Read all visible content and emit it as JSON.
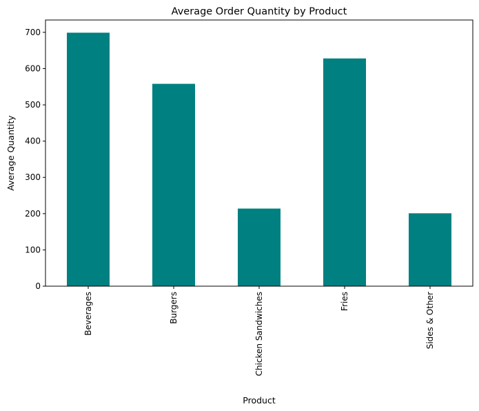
{
  "chart_data": {
    "type": "bar",
    "title": "Average Order Quantity by Product",
    "xlabel": "Product",
    "ylabel": "Average Quantity",
    "categories": [
      "Beverages",
      "Burgers",
      "Chicken Sandwiches",
      "Fries",
      "Sides & Other"
    ],
    "values": [
      699,
      558,
      214,
      628,
      201
    ],
    "ylim": [
      0,
      734
    ],
    "yticks": [
      0,
      100,
      200,
      300,
      400,
      500,
      600,
      700
    ],
    "grid": false,
    "legend": "none",
    "bar_color": "#008080"
  }
}
